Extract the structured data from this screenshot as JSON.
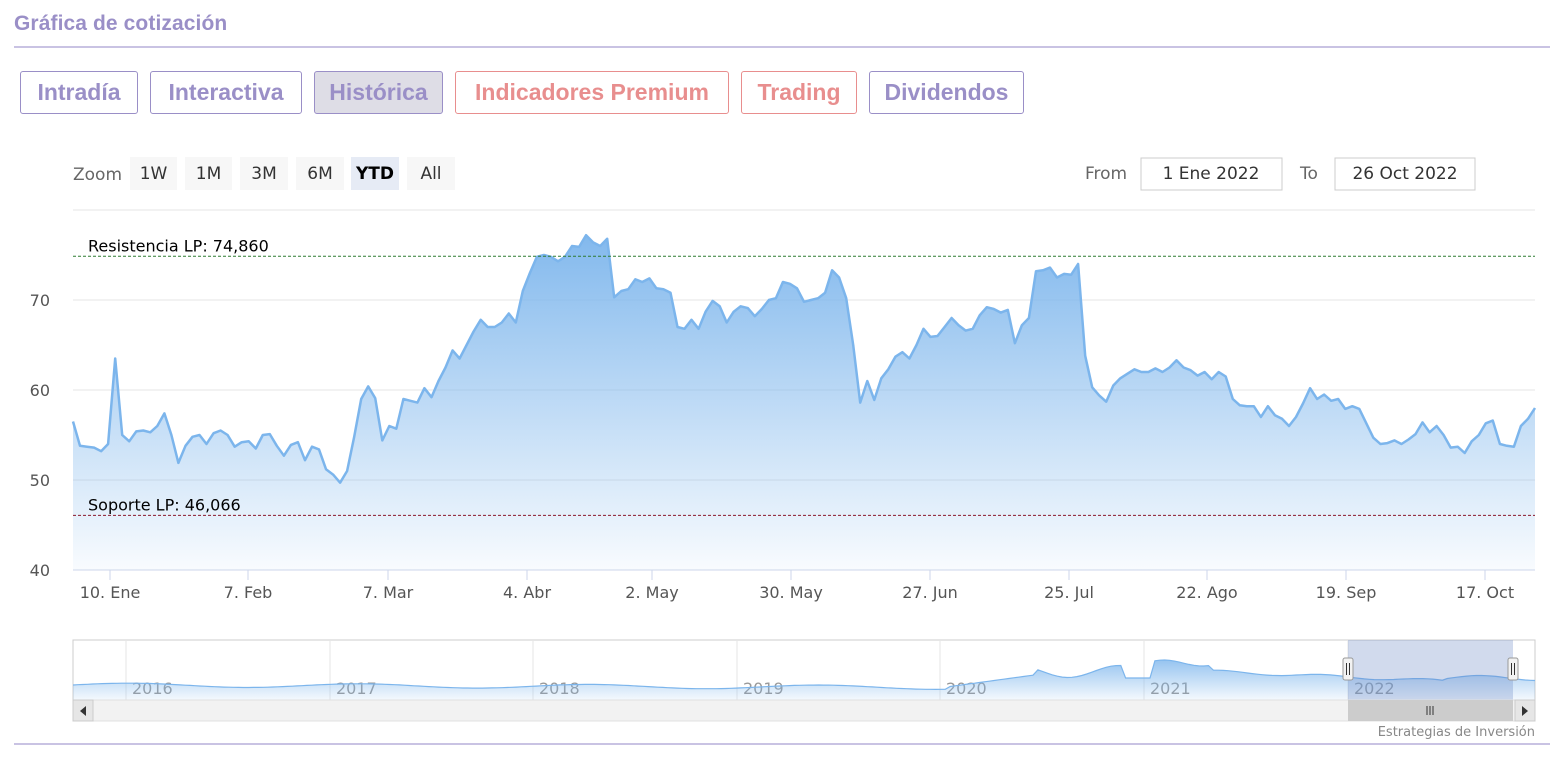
{
  "section_title": "Gráfica de cotización",
  "tabs": [
    {
      "label": "Intradía",
      "variant": "normal"
    },
    {
      "label": "Interactiva",
      "variant": "normal"
    },
    {
      "label": "Histórica",
      "variant": "active"
    },
    {
      "label": "Indicadores Premium",
      "variant": "premium"
    },
    {
      "label": "Trading",
      "variant": "premium"
    },
    {
      "label": "Dividendos",
      "variant": "normal"
    }
  ],
  "range_selector": {
    "zoom_label": "Zoom",
    "buttons": [
      "1W",
      "1M",
      "3M",
      "6M",
      "YTD",
      "All"
    ],
    "selected": "YTD",
    "from_label": "From",
    "from_value": "1 Ene 2022",
    "to_label": "To",
    "to_value": "26 Oct 2022"
  },
  "colors": {
    "tab_primary": "#9a8fc7",
    "tab_premium": "#e88e8e",
    "series_line": "#7cb5ec",
    "resistance": "#2e7d32",
    "support": "#8b1a2e"
  },
  "chart_data": {
    "type": "area",
    "ylim": [
      40,
      80
    ],
    "y_ticks": [
      40,
      50,
      60,
      70
    ],
    "x_tick_labels": [
      "10. Ene",
      "7. Feb",
      "7. Mar",
      "4. Abr",
      "2. May",
      "30. May",
      "27. Jun",
      "25. Jul",
      "22. Ago",
      "19. Sep",
      "17. Oct"
    ],
    "grid": true,
    "plot_lines": [
      {
        "label": "Resistencia LP: 74,860",
        "value": 74.86,
        "color": "#2e7d32"
      },
      {
        "label": "Soporte LP: 46,066",
        "value": 46.066,
        "color": "#8b1a2e"
      }
    ],
    "values": [
      56.5,
      53.8,
      53.7,
      53.6,
      53.2,
      54.0,
      63.5,
      55.0,
      54.3,
      55.4,
      55.5,
      55.3,
      56.0,
      57.4,
      55.0,
      51.9,
      53.8,
      54.8,
      55.0,
      54.0,
      55.2,
      55.5,
      55.0,
      53.7,
      54.2,
      54.3,
      53.5,
      55.0,
      55.1,
      53.8,
      52.7,
      53.9,
      54.2,
      52.2,
      53.7,
      53.4,
      51.2,
      50.6,
      49.7,
      51.0,
      54.8,
      59.0,
      60.4,
      59.1,
      54.4,
      56.0,
      55.7,
      59.0,
      58.8,
      58.6,
      60.2,
      59.2,
      61.0,
      62.5,
      64.4,
      63.5,
      65.0,
      66.5,
      67.8,
      67.0,
      67.0,
      67.5,
      68.5,
      67.5,
      71.0,
      73.0,
      74.8,
      75.0,
      74.8,
      74.3,
      74.8,
      76.0,
      75.9,
      77.2,
      76.4,
      76.0,
      76.8,
      70.3,
      71.0,
      71.2,
      72.3,
      72.0,
      72.4,
      71.3,
      71.2,
      70.8,
      67.0,
      66.8,
      67.8,
      66.8,
      68.7,
      69.9,
      69.3,
      67.5,
      68.7,
      69.3,
      69.1,
      68.2,
      69.0,
      70.0,
      70.2,
      72.0,
      71.8,
      71.3,
      69.8,
      70.0,
      70.2,
      70.8,
      73.3,
      72.5,
      70.2,
      65.0,
      58.6,
      61.0,
      58.9,
      61.3,
      62.3,
      63.7,
      64.2,
      63.5,
      65.0,
      66.8,
      65.9,
      66.0,
      67.0,
      68.0,
      67.2,
      66.6,
      66.8,
      68.3,
      69.2,
      69.0,
      68.6,
      68.9,
      65.2,
      67.2,
      68.0,
      73.2,
      73.3,
      73.6,
      72.5,
      72.9,
      72.8,
      74.0,
      63.8,
      60.3,
      59.4,
      58.7,
      60.5,
      61.3,
      61.8,
      62.3,
      62.0,
      62.0,
      62.4,
      62.0,
      62.5,
      63.3,
      62.5,
      62.2,
      61.6,
      62.0,
      61.2,
      62.0,
      61.5,
      59.0,
      58.3,
      58.2,
      58.2,
      57.0,
      58.2,
      57.2,
      56.8,
      56.0,
      57.0,
      58.5,
      60.2,
      59.0,
      59.5,
      58.8,
      59.0,
      57.9,
      58.2,
      57.9,
      56.3,
      54.7,
      54.0,
      54.1,
      54.4,
      54.0,
      54.5,
      55.1,
      56.4,
      55.3,
      56.0,
      55.0,
      53.6,
      53.7,
      53.0,
      54.3,
      55.0,
      56.3,
      56.6,
      54.0,
      53.8,
      53.7,
      56.0,
      56.8,
      58.0
    ],
    "navigator": {
      "year_labels": [
        "2016",
        "2017",
        "2018",
        "2019",
        "2020",
        "2021",
        "2022"
      ]
    }
  },
  "credit": "Estrategias de Inversión"
}
